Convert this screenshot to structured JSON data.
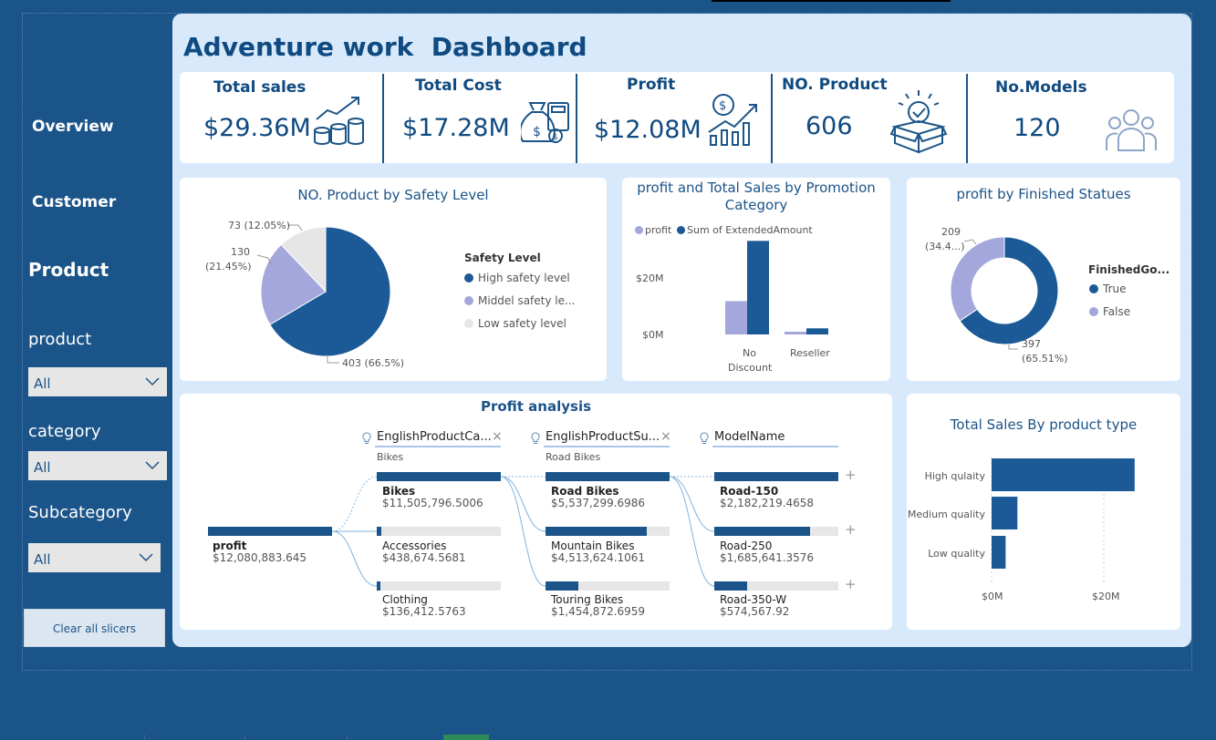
{
  "nav": {
    "overview": "Overview",
    "customer": "Customer",
    "product": "Product"
  },
  "slicers": [
    {
      "label": "product",
      "value": "All"
    },
    {
      "label": "category",
      "value": "All"
    },
    {
      "label": "Subcategory",
      "value": "All"
    }
  ],
  "clear_button": "Clear all slicers",
  "dashboard_title": "Adventure work  Dashboard",
  "kpis": [
    {
      "label": "Total sales",
      "value": "$29.36M",
      "icon": "sales-growth-coins-icon"
    },
    {
      "label": "Total Cost",
      "value": "$17.28M",
      "icon": "money-bag-calculator-icon"
    },
    {
      "label": "Profit",
      "value": "$12.08M",
      "icon": "profit-chart-icon"
    },
    {
      "label": "NO. Product",
      "value": "606",
      "icon": "product-box-icon"
    },
    {
      "label": "No.Models",
      "value": "120",
      "icon": "people-group-icon"
    }
  ],
  "safety_chart": {
    "title": "NO. Product by Safety Level",
    "legend_title": "Safety Level",
    "labels": {
      "high": "403 (66.5%)",
      "middle": "130\n(21.45%)",
      "middle_a": "130",
      "middle_b": "(21.45%)",
      "low": "73 (12.05%)"
    }
  },
  "promotion_chart": {
    "title_line1": "profit and Total Sales by Promotion",
    "title_line2": "Category",
    "legend": [
      "profit",
      "Sum of ExtendedAmount"
    ],
    "y_ticks": [
      "$20M",
      "$0M"
    ],
    "x_labels": [
      "No",
      "Discount",
      "Reseller"
    ]
  },
  "finished_chart": {
    "title": "profit by Finished Statues",
    "legend_title": "FinishedGo...",
    "legend": [
      "True",
      "False"
    ],
    "label_false_a": "209",
    "label_false_b": "(34.4...)",
    "label_true_a": "397",
    "label_true_b": "(65.51%)"
  },
  "profit_analysis": {
    "title": "Profit analysis",
    "headers": [
      "EnglishProductCa...",
      "EnglishProductSu...",
      "ModelName"
    ],
    "subheaders": [
      "Bikes",
      "Road Bikes"
    ],
    "root": {
      "name": "profit",
      "value": "$12,080,883.645"
    },
    "level1": [
      {
        "name": "Bikes",
        "value": "$11,505,796.5006",
        "fraction": 1.0
      },
      {
        "name": "Accessories",
        "value": "$438,674.5681",
        "fraction": 0.038
      },
      {
        "name": "Clothing",
        "value": "$136,412.5763",
        "fraction": 0.012
      }
    ],
    "level2": [
      {
        "name": "Road Bikes",
        "value": "$5,537,299.6986",
        "fraction": 1.0
      },
      {
        "name": "Mountain Bikes",
        "value": "$4,513,624.1061",
        "fraction": 0.815
      },
      {
        "name": "Touring Bikes",
        "value": "$1,454,872.6959",
        "fraction": 0.263
      }
    ],
    "level3": [
      {
        "name": "Road-150",
        "value": "$2,182,219.4658",
        "fraction": 1.0
      },
      {
        "name": "Road-250",
        "value": "$1,685,641.3576",
        "fraction": 0.772
      },
      {
        "name": "Road-350-W",
        "value": "$574,567.92",
        "fraction": 0.263
      }
    ]
  },
  "product_type_chart": {
    "title": "Total Sales By product type",
    "x_ticks": [
      "$0M",
      "$20M"
    ]
  },
  "chart_data": [
    {
      "type": "pie",
      "title": "NO. Product by Safety Level",
      "categories": [
        "High safety level",
        "Middel safety le...",
        "Low safety level"
      ],
      "values": [
        403,
        130,
        73
      ],
      "colors": [
        "#1b5a96",
        "#a3a7db",
        "#e6e6e6"
      ]
    },
    {
      "type": "bar",
      "title": "profit and Total Sales by Promotion Category",
      "categories": [
        "No Discount",
        "Reseller"
      ],
      "series": [
        {
          "name": "profit",
          "values": [
            9.8,
            0.8
          ],
          "color": "#a3a7db"
        },
        {
          "name": "Sum of ExtendedAmount",
          "values": [
            27.5,
            1.8
          ],
          "color": "#1b5a96"
        }
      ],
      "ylim": [
        0,
        30
      ]
    },
    {
      "type": "pie",
      "title": "profit by Finished Statues",
      "categories": [
        "True",
        "False"
      ],
      "values": [
        397,
        209
      ],
      "colors": [
        "#1b5a96",
        "#a3a7db"
      ]
    },
    {
      "type": "bar",
      "title": "Total Sales By product type",
      "categories": [
        "High qulaity",
        "Medium quality",
        "Low quality"
      ],
      "values": [
        25.5,
        4.6,
        2.5
      ],
      "xlim": [
        0,
        30
      ]
    }
  ]
}
